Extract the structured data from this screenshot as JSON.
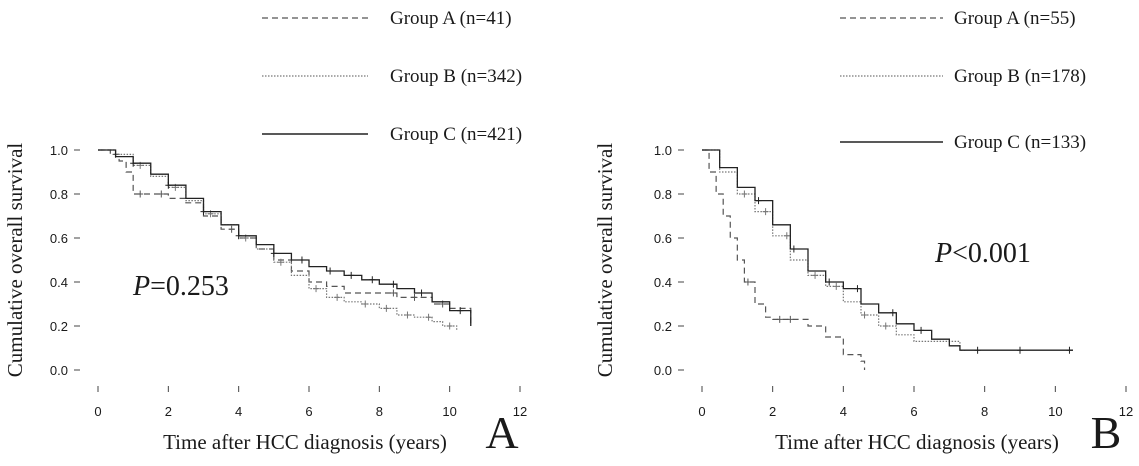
{
  "chart_data": [
    {
      "type": "line",
      "panel_label": "A",
      "xlabel": "Time after HCC diagnosis (years)",
      "ylabel": "Cumulative overall survival",
      "xlim": [
        0,
        12
      ],
      "ylim": [
        0,
        1
      ],
      "xticks": [
        0,
        2,
        4,
        6,
        8,
        10,
        12
      ],
      "yticks": [
        0.0,
        0.2,
        0.4,
        0.6,
        0.8,
        1.0
      ],
      "ytick_labels": [
        "0.0",
        "0.2",
        "0.4",
        "0.6",
        "0.8",
        "1.0"
      ],
      "annotation_italic": "P",
      "annotation_rest": "=0.253",
      "legend_position": "top-right",
      "series": [
        {
          "name": "Group A (n=41)",
          "style": "dashed",
          "color": "#555555",
          "points": [
            [
              0,
              1.0
            ],
            [
              0.35,
              0.98
            ],
            [
              0.6,
              0.95
            ],
            [
              0.8,
              0.9
            ],
            [
              1.0,
              0.8
            ],
            [
              1.5,
              0.8
            ],
            [
              2.0,
              0.78
            ],
            [
              2.5,
              0.76
            ],
            [
              3.0,
              0.7
            ],
            [
              3.5,
              0.64
            ],
            [
              4.0,
              0.6
            ],
            [
              4.5,
              0.55
            ],
            [
              5.0,
              0.5
            ],
            [
              5.5,
              0.45
            ],
            [
              6.0,
              0.4
            ],
            [
              6.5,
              0.38
            ],
            [
              7.0,
              0.35
            ],
            [
              8.0,
              0.35
            ],
            [
              8.5,
              0.33
            ],
            [
              9.5,
              0.3
            ],
            [
              10.0,
              0.28
            ],
            [
              10.6,
              0.2
            ]
          ],
          "censor_x": [
            0.5,
            1.2,
            1.8,
            3.8,
            8.4,
            9.0,
            9.8
          ]
        },
        {
          "name": "Group B (n=342)",
          "style": "dotted",
          "color": "#777777",
          "points": [
            [
              0,
              1.0
            ],
            [
              0.5,
              0.98
            ],
            [
              1.0,
              0.93
            ],
            [
              1.5,
              0.88
            ],
            [
              2.0,
              0.83
            ],
            [
              2.5,
              0.77
            ],
            [
              3.0,
              0.71
            ],
            [
              3.5,
              0.66
            ],
            [
              4.0,
              0.6
            ],
            [
              4.5,
              0.55
            ],
            [
              5.0,
              0.49
            ],
            [
              5.5,
              0.43
            ],
            [
              6.0,
              0.37
            ],
            [
              6.5,
              0.33
            ],
            [
              7.0,
              0.31
            ],
            [
              7.5,
              0.3
            ],
            [
              8.0,
              0.28
            ],
            [
              8.5,
              0.25
            ],
            [
              9.0,
              0.24
            ],
            [
              9.5,
              0.22
            ],
            [
              9.8,
              0.2
            ],
            [
              10.2,
              0.18
            ]
          ],
          "censor_x": [
            1.2,
            2.2,
            3.2,
            4.2,
            5.2,
            6.2,
            6.8,
            7.6,
            8.2,
            8.8,
            9.4,
            10.0
          ]
        },
        {
          "name": "Group C (n=421)",
          "style": "solid",
          "color": "#222222",
          "points": [
            [
              0,
              1.0
            ],
            [
              0.5,
              0.97
            ],
            [
              1.0,
              0.94
            ],
            [
              1.5,
              0.89
            ],
            [
              2.0,
              0.84
            ],
            [
              2.5,
              0.78
            ],
            [
              3.0,
              0.72
            ],
            [
              3.5,
              0.66
            ],
            [
              4.0,
              0.61
            ],
            [
              4.5,
              0.57
            ],
            [
              5.0,
              0.53
            ],
            [
              5.5,
              0.5
            ],
            [
              6.0,
              0.47
            ],
            [
              6.5,
              0.45
            ],
            [
              7.0,
              0.43
            ],
            [
              7.5,
              0.41
            ],
            [
              8.0,
              0.39
            ],
            [
              8.5,
              0.37
            ],
            [
              9.0,
              0.35
            ],
            [
              9.5,
              0.31
            ],
            [
              10.0,
              0.27
            ],
            [
              10.6,
              0.2
            ]
          ],
          "censor_x": [
            1.0,
            2.0,
            3.0,
            4.0,
            5.0,
            5.8,
            6.6,
            7.2,
            7.8,
            8.4,
            9.2,
            10.3
          ]
        }
      ]
    },
    {
      "type": "line",
      "panel_label": "B",
      "xlabel": "Time after HCC diagnosis (years)",
      "ylabel": "Cumulative overall survival",
      "xlim": [
        0,
        12
      ],
      "ylim": [
        0,
        1
      ],
      "xticks": [
        0,
        2,
        4,
        6,
        8,
        10,
        12
      ],
      "yticks": [
        0.0,
        0.2,
        0.4,
        0.6,
        0.8,
        1.0
      ],
      "ytick_labels": [
        "0.0",
        "0.2",
        "0.4",
        "0.6",
        "0.8",
        "1.0"
      ],
      "annotation_italic": "P",
      "annotation_rest": "<0.001",
      "legend_position": "top-right",
      "series": [
        {
          "name": "Group A (n=55)",
          "style": "dashed",
          "color": "#555555",
          "points": [
            [
              0,
              1.0
            ],
            [
              0.2,
              0.9
            ],
            [
              0.4,
              0.8
            ],
            [
              0.6,
              0.7
            ],
            [
              0.8,
              0.6
            ],
            [
              1.0,
              0.5
            ],
            [
              1.2,
              0.4
            ],
            [
              1.5,
              0.3
            ],
            [
              1.8,
              0.24
            ],
            [
              2.0,
              0.23
            ],
            [
              2.6,
              0.23
            ],
            [
              3.0,
              0.2
            ],
            [
              3.5,
              0.15
            ],
            [
              4.0,
              0.07
            ],
            [
              4.5,
              0.04
            ],
            [
              4.6,
              0.0
            ]
          ],
          "censor_x": [
            1.3,
            2.2,
            2.5
          ]
        },
        {
          "name": "Group B (n=178)",
          "style": "dotted",
          "color": "#777777",
          "points": [
            [
              0,
              1.0
            ],
            [
              0.5,
              0.9
            ],
            [
              1.0,
              0.8
            ],
            [
              1.5,
              0.72
            ],
            [
              2.0,
              0.61
            ],
            [
              2.5,
              0.5
            ],
            [
              3.0,
              0.43
            ],
            [
              3.5,
              0.38
            ],
            [
              4.0,
              0.31
            ],
            [
              4.5,
              0.25
            ],
            [
              5.0,
              0.2
            ],
            [
              5.5,
              0.16
            ],
            [
              6.0,
              0.13
            ],
            [
              7.0,
              0.13
            ],
            [
              7.3,
              0.09
            ],
            [
              7.5,
              0.09
            ]
          ],
          "censor_x": [
            1.2,
            1.8,
            2.4,
            3.2,
            3.8,
            4.6,
            5.2
          ]
        },
        {
          "name": "Group C (n=133)",
          "style": "solid",
          "color": "#222222",
          "points": [
            [
              0,
              1.0
            ],
            [
              0.5,
              0.92
            ],
            [
              1.0,
              0.83
            ],
            [
              1.5,
              0.77
            ],
            [
              2.0,
              0.66
            ],
            [
              2.5,
              0.55
            ],
            [
              3.0,
              0.45
            ],
            [
              3.5,
              0.4
            ],
            [
              4.0,
              0.37
            ],
            [
              4.5,
              0.3
            ],
            [
              5.0,
              0.26
            ],
            [
              5.5,
              0.21
            ],
            [
              6.0,
              0.18
            ],
            [
              6.5,
              0.14
            ],
            [
              7.0,
              0.11
            ],
            [
              7.3,
              0.09
            ],
            [
              10.5,
              0.09
            ]
          ],
          "censor_x": [
            1.6,
            2.6,
            3.6,
            4.4,
            5.4,
            6.2,
            7.8,
            9.0,
            10.4
          ]
        }
      ]
    }
  ]
}
